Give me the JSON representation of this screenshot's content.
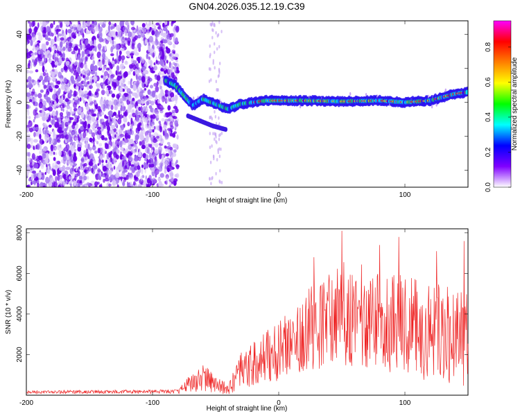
{
  "title": "GN04.2026.035.12.19.C39",
  "chart_data": [
    {
      "type": "heatmap",
      "name": "spectrogram",
      "xlabel": "Height of straight line (km)",
      "ylabel": "Frequency (Hz)",
      "xlim": [
        -200,
        150
      ],
      "ylim": [
        -50,
        48
      ],
      "xticks": [
        "-200",
        "-100",
        "0",
        "100"
      ],
      "yticks": [
        "40",
        "20",
        "0",
        "-20",
        "-40"
      ],
      "noise_region_end_km": -80,
      "track": [
        {
          "x": -90,
          "y": 13
        },
        {
          "x": -82,
          "y": 10
        },
        {
          "x": -75,
          "y": 4
        },
        {
          "x": -68,
          "y": -2
        },
        {
          "x": -60,
          "y": 2
        },
        {
          "x": -50,
          "y": -1
        },
        {
          "x": -40,
          "y": -4
        },
        {
          "x": -30,
          "y": -1
        },
        {
          "x": -20,
          "y": 0
        },
        {
          "x": -10,
          "y": 1
        },
        {
          "x": 0,
          "y": 1
        },
        {
          "x": 20,
          "y": 1
        },
        {
          "x": 50,
          "y": 0.5
        },
        {
          "x": 80,
          "y": 1
        },
        {
          "x": 100,
          "y": 0
        },
        {
          "x": 120,
          "y": 1
        },
        {
          "x": 140,
          "y": 5
        },
        {
          "x": 150,
          "y": 6
        }
      ],
      "branch": [
        {
          "x": -72,
          "y": -8
        },
        {
          "x": -62,
          "y": -11
        },
        {
          "x": -52,
          "y": -14
        },
        {
          "x": -42,
          "y": -16
        }
      ],
      "colorbar": {
        "label": "Normalized spectral amplitude",
        "range": [
          0,
          0.95
        ],
        "ticks": [
          "0.0",
          "0.2",
          "0.4",
          "0.6",
          "0.8"
        ],
        "colors": [
          "#ffffff",
          "#8000ff",
          "#0000ff",
          "#00ffff",
          "#00ff00",
          "#ffff00",
          "#ff8000",
          "#ff0000",
          "#ff00ff"
        ]
      }
    },
    {
      "type": "line",
      "name": "snr",
      "xlabel": "Height of straight line (km)",
      "ylabel": "SNR (10 * v/v)",
      "xlim": [
        -200,
        150
      ],
      "ylim": [
        0,
        8200
      ],
      "xticks": [
        "-200",
        "-100",
        "0",
        "100"
      ],
      "yticks": [
        "8000",
        "6000",
        "4000",
        "2000"
      ],
      "color": "#ee2222",
      "envelope": [
        {
          "x": -200,
          "mean": 150,
          "spread": 80
        },
        {
          "x": -80,
          "mean": 180,
          "spread": 100
        },
        {
          "x": -70,
          "mean": 600,
          "spread": 500
        },
        {
          "x": -60,
          "mean": 900,
          "spread": 700
        },
        {
          "x": -50,
          "mean": 500,
          "spread": 400
        },
        {
          "x": -40,
          "mean": 300,
          "spread": 300
        },
        {
          "x": -30,
          "mean": 1200,
          "spread": 900
        },
        {
          "x": -20,
          "mean": 1500,
          "spread": 1100
        },
        {
          "x": 0,
          "mean": 2200,
          "spread": 1500
        },
        {
          "x": 20,
          "mean": 3200,
          "spread": 2000
        },
        {
          "x": 50,
          "mean": 4000,
          "spread": 2600
        },
        {
          "x": 80,
          "mean": 3800,
          "spread": 2500
        },
        {
          "x": 100,
          "mean": 3400,
          "spread": 2500
        },
        {
          "x": 130,
          "mean": 3000,
          "spread": 2400
        },
        {
          "x": 150,
          "mean": 2800,
          "spread": 2400
        }
      ],
      "peaks": [
        {
          "x": 50,
          "y": 8100
        },
        {
          "x": 95,
          "y": 7800
        },
        {
          "x": 147,
          "y": 7600
        },
        {
          "x": 80,
          "y": 7400
        },
        {
          "x": 125,
          "y": 7100
        },
        {
          "x": 28,
          "y": 6800
        }
      ]
    }
  ]
}
